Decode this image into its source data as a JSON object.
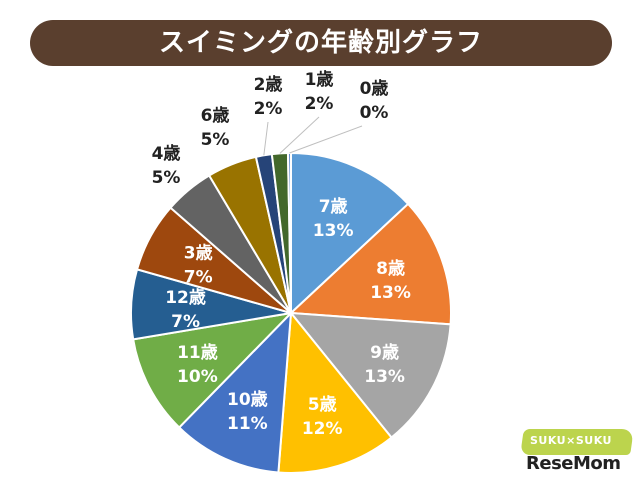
{
  "header": {
    "title": "スイミングの年齢別グラフ"
  },
  "logo": {
    "top_text": "SUKU×SUKU",
    "bottom_text": "ReseMom"
  },
  "chart_data": {
    "type": "pie",
    "title": "スイミングの年齢別グラフ",
    "slices": [
      {
        "label": "7歳",
        "pct_label": "13%",
        "value": 13,
        "color": "#5b9bd5",
        "text_color": "#ffffff",
        "label_pos": "inside"
      },
      {
        "label": "8歳",
        "pct_label": "13%",
        "value": 13,
        "color": "#ed7d31",
        "text_color": "#ffffff",
        "label_pos": "inside"
      },
      {
        "label": "9歳",
        "pct_label": "13%",
        "value": 13,
        "color": "#a5a5a5",
        "text_color": "#ffffff",
        "label_pos": "inside"
      },
      {
        "label": "5歳",
        "pct_label": "12%",
        "value": 12,
        "color": "#ffc000",
        "text_color": "#ffffff",
        "label_pos": "inside"
      },
      {
        "label": "10歳",
        "pct_label": "11%",
        "value": 11,
        "color": "#4472c4",
        "text_color": "#ffffff",
        "label_pos": "inside"
      },
      {
        "label": "11歳",
        "pct_label": "10%",
        "value": 10,
        "color": "#70ad47",
        "text_color": "#ffffff",
        "label_pos": "inside"
      },
      {
        "label": "12歳",
        "pct_label": "7%",
        "value": 7,
        "color": "#255e91",
        "text_color": "#ffffff",
        "label_pos": "inside"
      },
      {
        "label": "3歳",
        "pct_label": "7%",
        "value": 7,
        "color": "#9e480e",
        "text_color": "#ffffff",
        "label_pos": "inside"
      },
      {
        "label": "4歳",
        "pct_label": "5%",
        "value": 5,
        "color": "#636363",
        "text_color": "#222222",
        "label_pos": "outside"
      },
      {
        "label": "6歳",
        "pct_label": "5%",
        "value": 5,
        "color": "#997300",
        "text_color": "#222222",
        "label_pos": "outside"
      },
      {
        "label": "2歳",
        "pct_label": "2%",
        "value": 1.6,
        "color": "#264478",
        "text_color": "#222222",
        "label_pos": "outside"
      },
      {
        "label": "1歳",
        "pct_label": "2%",
        "value": 1.6,
        "color": "#43682b",
        "text_color": "#222222",
        "label_pos": "outside"
      },
      {
        "label": "0歳",
        "pct_label": "0%",
        "value": 0.3,
        "color": "#698ed0",
        "text_color": "#222222",
        "label_pos": "outside"
      }
    ],
    "start": "12 o'clock",
    "direction": "clockwise",
    "legend": "none"
  }
}
